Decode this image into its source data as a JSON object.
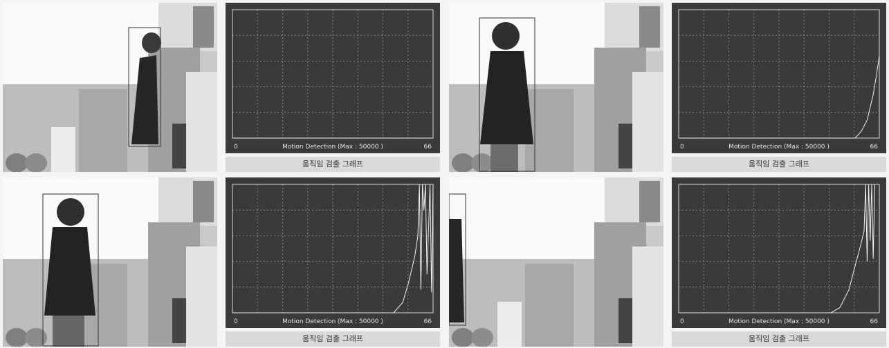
{
  "frames": [
    {
      "id": "frame-1",
      "graph": {
        "caption": "움직임 검출 그래프",
        "xlabel": "Motion Detection (Max : 50000 )",
        "x_min_label": "0",
        "x_max_label": "66"
      }
    },
    {
      "id": "frame-2",
      "graph": {
        "caption": "움직임 검출 그래프",
        "xlabel": "Motion Detection (Max : 50000 )",
        "x_min_label": "0",
        "x_max_label": "66"
      }
    },
    {
      "id": "frame-3",
      "graph": {
        "caption": "움직임 검출 그래프",
        "xlabel": "Motion Detection (Max : 50000 )",
        "x_min_label": "0",
        "x_max_label": "66"
      }
    },
    {
      "id": "frame-4",
      "graph": {
        "caption": "움직임 검출 그래프",
        "xlabel": "Motion Detection (Max : 50000 )",
        "x_min_label": "0",
        "x_max_label": "66"
      }
    }
  ],
  "chart_data": [
    {
      "type": "line",
      "xlabel": "Motion Detection (Max : 50000 )",
      "xlim": [
        0,
        66
      ],
      "ylim": [
        0,
        50000
      ],
      "x": [
        0,
        66
      ],
      "values": [
        0,
        0
      ]
    },
    {
      "type": "line",
      "xlabel": "Motion Detection (Max : 50000 )",
      "xlim": [
        0,
        66
      ],
      "ylim": [
        0,
        50000
      ],
      "x": [
        0,
        58,
        60,
        62,
        63,
        64,
        65,
        66
      ],
      "values": [
        0,
        0,
        2500,
        7000,
        12000,
        17000,
        24000,
        32000
      ]
    },
    {
      "type": "line",
      "xlabel": "Motion Detection (Max : 50000 )",
      "xlim": [
        0,
        66
      ],
      "ylim": [
        0,
        50000
      ],
      "x": [
        0,
        53,
        56,
        58,
        60,
        61,
        61.5,
        62,
        62.5,
        63,
        63.5,
        64,
        65,
        65.5,
        66
      ],
      "values": [
        0,
        0,
        4000,
        12000,
        22000,
        30000,
        50000,
        9000,
        50000,
        40000,
        50000,
        15000,
        50000,
        8000,
        50000
      ]
    },
    {
      "type": "line",
      "xlabel": "Motion Detection (Max : 50000 )",
      "xlim": [
        0,
        66
      ],
      "ylim": [
        0,
        50000
      ],
      "x": [
        0,
        50,
        53,
        56,
        58,
        60,
        61,
        61.5,
        62,
        62.5,
        63,
        63.5,
        64,
        64.5
      ],
      "values": [
        0,
        0,
        2000,
        9000,
        18000,
        27000,
        32000,
        50000,
        20000,
        50000,
        28000,
        50000,
        21000,
        50000
      ]
    }
  ]
}
